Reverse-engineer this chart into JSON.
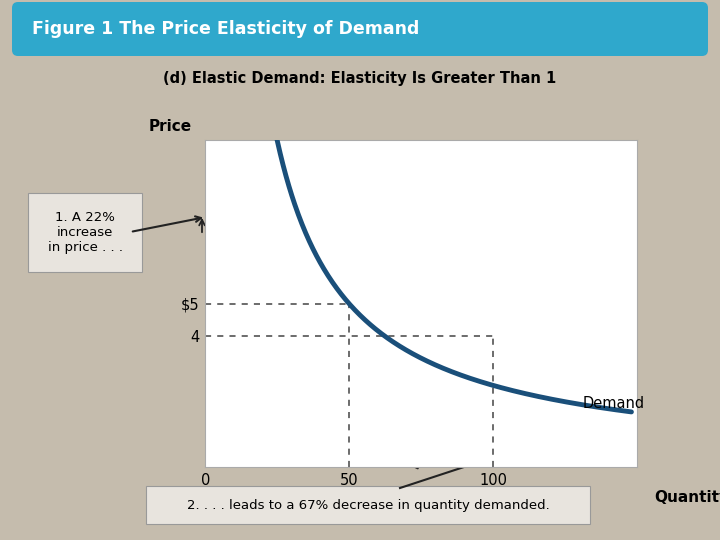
{
  "figure_title": "Figure 1 The Price Elasticity of Demand",
  "chart_subtitle": "(d) Elastic Demand: Elasticity Is Greater Than 1",
  "xlabel": "Quantity",
  "ylabel": "Price",
  "demand_label": "Demand",
  "annotation1": "1. A 22%\nincrease\nin price . . .",
  "annotation2": "2. . . . leads to a 67% decrease in quantity demanded.",
  "header_bg": "#2fa8cc",
  "header_text_color": "#ffffff",
  "background_color": "#c5bcad",
  "plot_bg": "#ffffff",
  "plot_border_color": "#cccccc",
  "curve_color": "#1a4f7a",
  "dashed_color": "#444444",
  "arrow_color": "#222222",
  "annot_box_bg": "#e8e4de",
  "annot2_box_bg": "#e8e4de",
  "x_min": 0,
  "x_max": 150,
  "y_min": 0,
  "y_max": 10,
  "curve_k": 250,
  "p1": 5,
  "p2": 4,
  "q1": 50,
  "q2": 100
}
